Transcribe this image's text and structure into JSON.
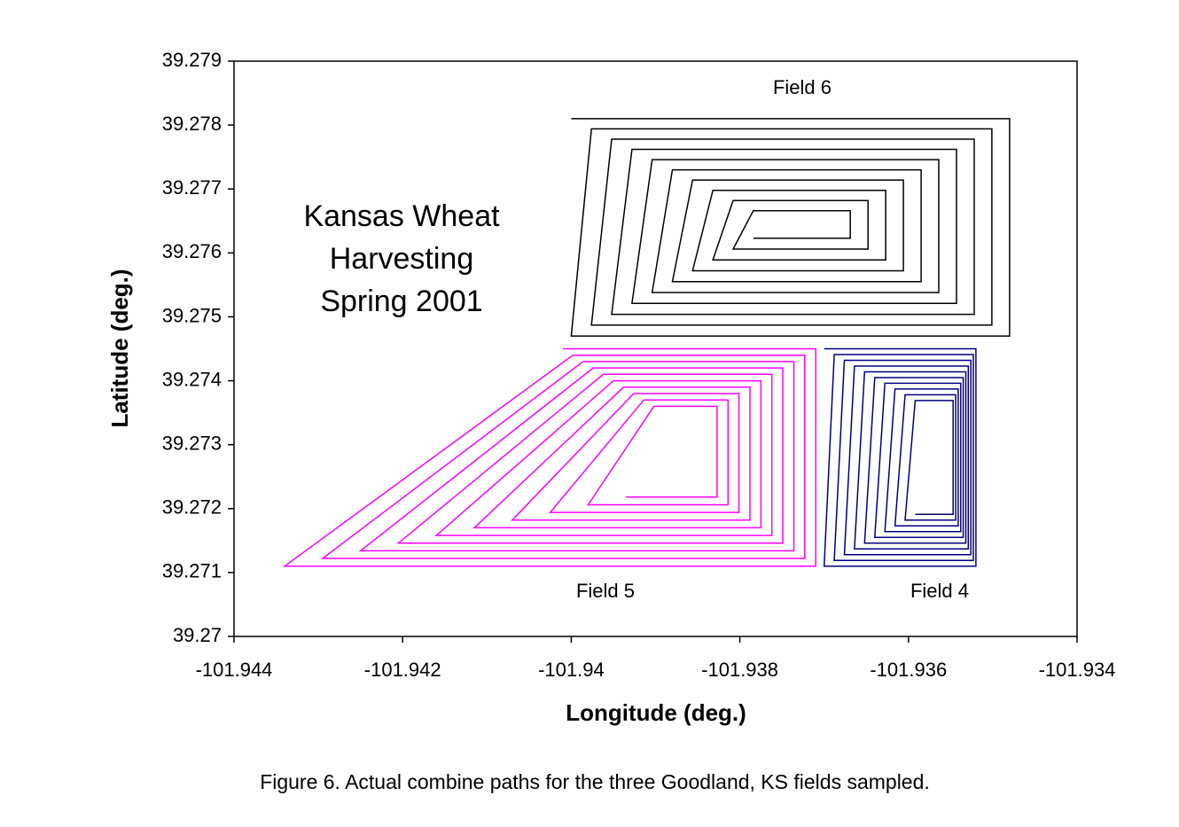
{
  "chart_data": {
    "type": "line",
    "annotations": [
      "Kansas Wheat",
      "Harvesting",
      "Spring 2001",
      "Field 6",
      "Field 5",
      "Field 4"
    ],
    "xlabel": "Longitude (deg.)",
    "ylabel": "Latitude (deg.)",
    "caption": "Figure 6.  Actual combine paths for the three Goodland, KS fields sampled.",
    "xlim": [
      -101.944,
      -101.934
    ],
    "xticks": [
      -101.944,
      -101.942,
      -101.94,
      -101.938,
      -101.936,
      -101.934
    ],
    "ylim": [
      39.27,
      39.279
    ],
    "yticks": [
      39.27,
      39.271,
      39.272,
      39.273,
      39.274,
      39.275,
      39.276,
      39.277,
      39.278,
      39.279
    ],
    "series": [
      {
        "color": "#000000",
        "x": [
          -101.94,
          -101.9348,
          -101.9348,
          -101.94,
          -101.93976,
          -101.93501,
          -101.93501,
          -101.93976,
          -101.93952,
          -101.93522,
          -101.93522,
          -101.93952,
          -101.93928,
          -101.93543,
          -101.93543,
          -101.93928,
          -101.93904,
          -101.93564,
          -101.93564,
          -101.93904,
          -101.9388,
          -101.93585,
          -101.93585,
          -101.9388,
          -101.93856,
          -101.93606,
          -101.93606,
          -101.93856,
          -101.93832,
          -101.93627,
          -101.93627,
          -101.93832,
          -101.93808,
          -101.93648,
          -101.93648,
          -101.93808,
          -101.93784,
          -101.93669,
          -101.93669,
          -101.93784
        ],
        "y": [
          39.2781,
          39.2781,
          39.2747,
          39.2747,
          39.27794,
          39.27794,
          39.27487,
          39.27487,
          39.27778,
          39.27778,
          39.27504,
          39.27504,
          39.27762,
          39.27762,
          39.27521,
          39.27521,
          39.27746,
          39.27746,
          39.27538,
          39.27538,
          39.2773,
          39.2773,
          39.27555,
          39.27555,
          39.27714,
          39.27714,
          39.27572,
          39.27572,
          39.27698,
          39.27698,
          39.27589,
          39.27589,
          39.27682,
          39.27682,
          39.27606,
          39.27606,
          39.27666,
          39.27666,
          39.27623,
          39.27623
        ]
      },
      {
        "color": "#ff00ff",
        "x": [
          -101.9401,
          -101.9371,
          -101.9371,
          -101.9434,
          -101.93998,
          -101.93723,
          -101.93723,
          -101.94295,
          -101.93986,
          -101.93736,
          -101.93736,
          -101.9425,
          -101.93974,
          -101.93749,
          -101.93749,
          -101.94205,
          -101.93962,
          -101.93762,
          -101.93762,
          -101.9416,
          -101.9395,
          -101.93775,
          -101.93775,
          -101.94115,
          -101.93938,
          -101.93788,
          -101.93788,
          -101.9407,
          -101.93926,
          -101.93801,
          -101.93801,
          -101.94025,
          -101.93914,
          -101.93814,
          -101.93814,
          -101.9398,
          -101.93902,
          -101.93827,
          -101.93827,
          -101.93935
        ],
        "y": [
          39.2745,
          39.2745,
          39.2711,
          39.2711,
          39.2744,
          39.2744,
          39.27122,
          39.27122,
          39.2743,
          39.2743,
          39.27134,
          39.27134,
          39.2742,
          39.2742,
          39.27146,
          39.27146,
          39.2741,
          39.2741,
          39.27158,
          39.27158,
          39.274,
          39.274,
          39.2717,
          39.2717,
          39.2739,
          39.2739,
          39.27182,
          39.27182,
          39.2738,
          39.2738,
          39.27194,
          39.27194,
          39.2737,
          39.2737,
          39.27206,
          39.27206,
          39.2736,
          39.2736,
          39.27218,
          39.27218
        ]
      },
      {
        "color": "#000080",
        "x": [
          -101.937,
          -101.9352,
          -101.9352,
          -101.937,
          -101.93688,
          -101.93523,
          -101.93523,
          -101.93688,
          -101.93676,
          -101.93526,
          -101.93526,
          -101.93676,
          -101.93664,
          -101.93529,
          -101.93529,
          -101.93664,
          -101.93652,
          -101.93532,
          -101.93532,
          -101.93652,
          -101.9364,
          -101.93535,
          -101.93535,
          -101.9364,
          -101.93628,
          -101.93538,
          -101.93538,
          -101.93628,
          -101.93616,
          -101.93541,
          -101.93541,
          -101.93616,
          -101.93604,
          -101.93544,
          -101.93544,
          -101.93604,
          -101.93592,
          -101.93547,
          -101.93547,
          -101.93592
        ],
        "y": [
          39.2745,
          39.2745,
          39.2711,
          39.2711,
          39.27441,
          39.27441,
          39.27119,
          39.27119,
          39.27432,
          39.27432,
          39.27128,
          39.27128,
          39.27423,
          39.27423,
          39.27137,
          39.27137,
          39.27414,
          39.27414,
          39.27146,
          39.27146,
          39.27405,
          39.27405,
          39.27155,
          39.27155,
          39.27396,
          39.27396,
          39.27164,
          39.27164,
          39.27387,
          39.27387,
          39.27173,
          39.27173,
          39.27378,
          39.27378,
          39.27182,
          39.27182,
          39.27369,
          39.27369,
          39.27191,
          39.27191
        ]
      }
    ]
  }
}
